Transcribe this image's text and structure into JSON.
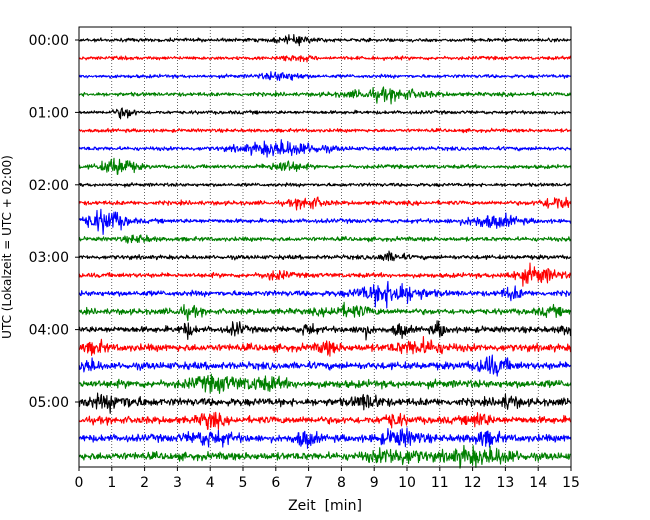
{
  "chart_data": {
    "type": "line",
    "title": "",
    "xlabel": "Zeit  [min]",
    "ylabel": "UTC (Lokalzeit = UTC + 02:00)",
    "xlim": [
      0,
      15
    ],
    "x_ticks": [
      "0",
      "1",
      "2",
      "3",
      "4",
      "5",
      "6",
      "7",
      "8",
      "9",
      "10",
      "11",
      "12",
      "13",
      "14",
      "15"
    ],
    "y_ticks": [
      {
        "label": "00:00",
        "row": 0
      },
      {
        "label": "01:00",
        "row": 4
      },
      {
        "label": "02:00",
        "row": 8
      },
      {
        "label": "03:00",
        "row": 12
      },
      {
        "label": "04:00",
        "row": 16
      },
      {
        "label": "05:00",
        "row": 20
      }
    ],
    "grid": "vertical-dotted",
    "row_interval_minutes": 15,
    "color_cycle": [
      "#000000",
      "#ff0000",
      "#0000ff",
      "#008000"
    ],
    "rows": [
      {
        "start": "00:00",
        "noise": 0.45,
        "events": [
          [
            6.6,
            0.6,
            0.8
          ]
        ]
      },
      {
        "start": "00:15",
        "noise": 0.45,
        "events": [
          [
            6.6,
            0.5,
            0.6
          ]
        ]
      },
      {
        "start": "00:30",
        "noise": 0.45,
        "events": [
          [
            6.2,
            0.6,
            1.0
          ]
        ]
      },
      {
        "start": "00:45",
        "noise": 0.5,
        "events": [
          [
            9.4,
            1.2,
            1.3
          ]
        ]
      },
      {
        "start": "01:00",
        "noise": 0.45,
        "events": [
          [
            1.4,
            0.3,
            1.3
          ]
        ]
      },
      {
        "start": "01:15",
        "noise": 0.45,
        "events": []
      },
      {
        "start": "01:30",
        "noise": 0.5,
        "events": [
          [
            6.2,
            1.2,
            1.8
          ]
        ]
      },
      {
        "start": "01:45",
        "noise": 0.5,
        "events": [
          [
            1.2,
            0.5,
            2.2
          ],
          [
            6.3,
            0.5,
            1.4
          ]
        ]
      },
      {
        "start": "02:00",
        "noise": 0.45,
        "events": []
      },
      {
        "start": "02:15",
        "noise": 0.55,
        "events": [
          [
            7.0,
            0.5,
            1.3
          ],
          [
            14.6,
            0.5,
            1.6
          ]
        ]
      },
      {
        "start": "02:30",
        "noise": 0.55,
        "events": [
          [
            0.8,
            0.6,
            2.8
          ],
          [
            12.6,
            0.8,
            1.5
          ]
        ]
      },
      {
        "start": "02:45",
        "noise": 0.55,
        "events": [
          [
            1.8,
            0.4,
            0.8
          ]
        ]
      },
      {
        "start": "03:00",
        "noise": 0.55,
        "events": [
          [
            9.5,
            0.4,
            1.0
          ]
        ]
      },
      {
        "start": "03:15",
        "noise": 0.6,
        "events": [
          [
            13.9,
            0.7,
            2.0
          ],
          [
            6.0,
            0.4,
            0.9
          ]
        ]
      },
      {
        "start": "03:30",
        "noise": 0.7,
        "events": [
          [
            9.5,
            0.9,
            2.8
          ],
          [
            13.2,
            0.3,
            1.4
          ]
        ]
      },
      {
        "start": "03:45",
        "noise": 0.75,
        "events": [
          [
            8.2,
            0.7,
            1.2
          ],
          [
            3.3,
            0.4,
            1.0
          ],
          [
            14.4,
            0.4,
            0.8
          ]
        ]
      },
      {
        "start": "04:00",
        "noise": 0.8,
        "events": [
          [
            3.3,
            0.2,
            1.6
          ],
          [
            4.8,
            0.2,
            1.5
          ],
          [
            7.0,
            0.2,
            1.5
          ],
          [
            8.7,
            0.2,
            1.4
          ],
          [
            9.8,
            0.2,
            1.7
          ],
          [
            11.0,
            0.2,
            1.7
          ],
          [
            14.9,
            0.2,
            1.2
          ]
        ]
      },
      {
        "start": "04:15",
        "noise": 0.95,
        "events": [
          [
            10.4,
            0.7,
            1.6
          ],
          [
            0.5,
            0.3,
            1.2
          ],
          [
            7.6,
            0.3,
            1.3
          ]
        ]
      },
      {
        "start": "04:30",
        "noise": 0.95,
        "events": [
          [
            12.6,
            0.5,
            2.0
          ],
          [
            0.3,
            0.3,
            1.2
          ]
        ]
      },
      {
        "start": "04:45",
        "noise": 1.0,
        "events": [
          [
            4.2,
            0.8,
            1.5
          ],
          [
            5.7,
            0.6,
            1.2
          ]
        ]
      },
      {
        "start": "05:00",
        "noise": 1.0,
        "events": [
          [
            1.0,
            0.8,
            1.3
          ],
          [
            8.8,
            0.4,
            1.5
          ],
          [
            13.1,
            0.3,
            1.3
          ]
        ]
      },
      {
        "start": "05:15",
        "noise": 0.95,
        "events": [
          [
            4.0,
            0.3,
            1.9
          ],
          [
            9.6,
            0.3,
            1.4
          ],
          [
            12.2,
            0.3,
            1.6
          ]
        ]
      },
      {
        "start": "05:30",
        "noise": 0.95,
        "events": [
          [
            4.0,
            0.7,
            1.5
          ],
          [
            6.9,
            0.3,
            1.9
          ],
          [
            9.8,
            0.6,
            1.8
          ],
          [
            12.4,
            0.4,
            1.5
          ]
        ]
      },
      {
        "start": "05:45",
        "noise": 1.0,
        "events": [
          [
            9.7,
            0.8,
            1.6
          ],
          [
            11.8,
            0.6,
            1.7
          ],
          [
            12.8,
            0.6,
            1.4
          ]
        ]
      }
    ]
  }
}
